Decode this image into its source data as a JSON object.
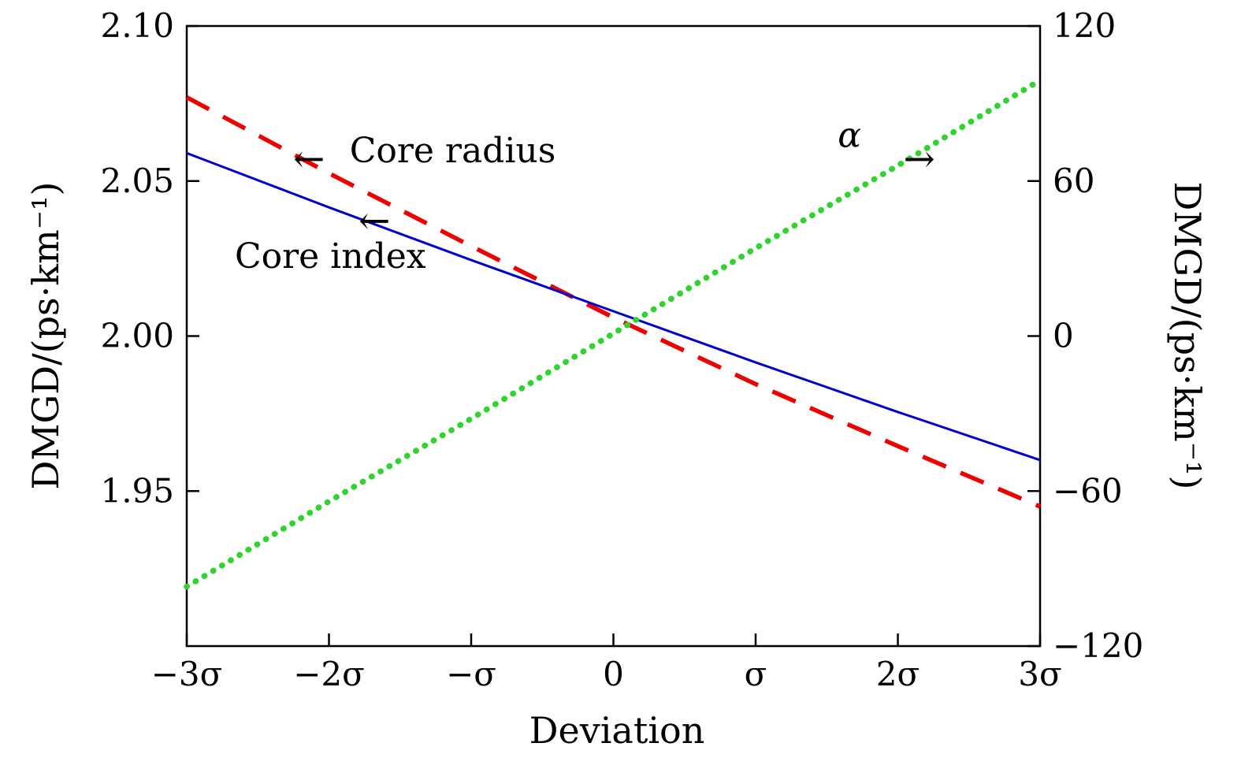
{
  "figure": {
    "background": "#ffffff",
    "text_color": "#000000"
  },
  "chart_data": {
    "type": "line",
    "x": [
      -3,
      -2,
      -1,
      0,
      1,
      2,
      3
    ],
    "x_unit": "standard deviations (σ)",
    "xlabel": "Deviation",
    "ylabel_left": "DMGD/(ps·km⁻¹)",
    "ylabel_right": "DMGD/(ps·km⁻¹)",
    "xlim": [
      -3,
      3
    ],
    "ylim_left": [
      1.9,
      2.1
    ],
    "ylim_right": [
      -120,
      120
    ],
    "grid": false,
    "legend_position": "in-plot annotations with axis arrows",
    "x_ticks": [
      {
        "v": -3,
        "label": "−3σ"
      },
      {
        "v": -2,
        "label": "−2σ"
      },
      {
        "v": -1,
        "label": "−σ"
      },
      {
        "v": 0,
        "label": "0"
      },
      {
        "v": 1,
        "label": "σ"
      },
      {
        "v": 2,
        "label": "2σ"
      },
      {
        "v": 3,
        "label": "3σ"
      }
    ],
    "y_ticks_left": [
      {
        "v": 2.1,
        "label": "2.10"
      },
      {
        "v": 2.05,
        "label": "2.05"
      },
      {
        "v": 2.0,
        "label": "2.00"
      },
      {
        "v": 1.95,
        "label": "1.95"
      }
    ],
    "y_ticks_right": [
      {
        "v": 120,
        "label": "120"
      },
      {
        "v": 60,
        "label": "60"
      },
      {
        "v": 0,
        "label": "0"
      },
      {
        "v": -60,
        "label": "−60"
      },
      {
        "v": -120,
        "label": "−120"
      }
    ],
    "series": [
      {
        "id": "core-radius",
        "name": "Core radius",
        "axis": "left",
        "color": "#ee0000",
        "style": "dashed",
        "values": [
          2.077,
          2.0525,
          2.029,
          2.006,
          1.9845,
          1.9645,
          1.945
        ]
      },
      {
        "id": "core-index",
        "name": "Core index",
        "axis": "left",
        "color": "#0000cc",
        "style": "solid",
        "values": [
          2.059,
          2.0415,
          2.0245,
          2.008,
          1.9915,
          1.9755,
          1.96
        ]
      },
      {
        "id": "alpha",
        "name": "α",
        "axis": "right",
        "color": "#2fd42f",
        "style": "dotted",
        "values": [
          -97,
          -64,
          -32,
          1,
          34,
          66,
          99
        ]
      }
    ],
    "annotations": [
      {
        "id": "core-radius-label",
        "text": "Core radius",
        "x": -1.13,
        "y": 2.056,
        "italic": false
      },
      {
        "id": "core-index-label",
        "text": "Core index",
        "x": -1.99,
        "y": 2.022,
        "italic": false
      },
      {
        "id": "alpha-label",
        "text": "α",
        "x": 1.66,
        "y": 2.061,
        "italic": true
      }
    ],
    "arrows": [
      {
        "id": "core-radius-arrow",
        "glyph": "←",
        "points_to": "left-axis",
        "x": -2.14,
        "y": 2.053
      },
      {
        "id": "core-index-arrow",
        "glyph": "←",
        "points_to": "left-axis",
        "x": -1.68,
        "y": 2.033
      },
      {
        "id": "alpha-arrow",
        "glyph": "→",
        "points_to": "right-axis",
        "x": 2.15,
        "y": 2.053
      }
    ]
  }
}
